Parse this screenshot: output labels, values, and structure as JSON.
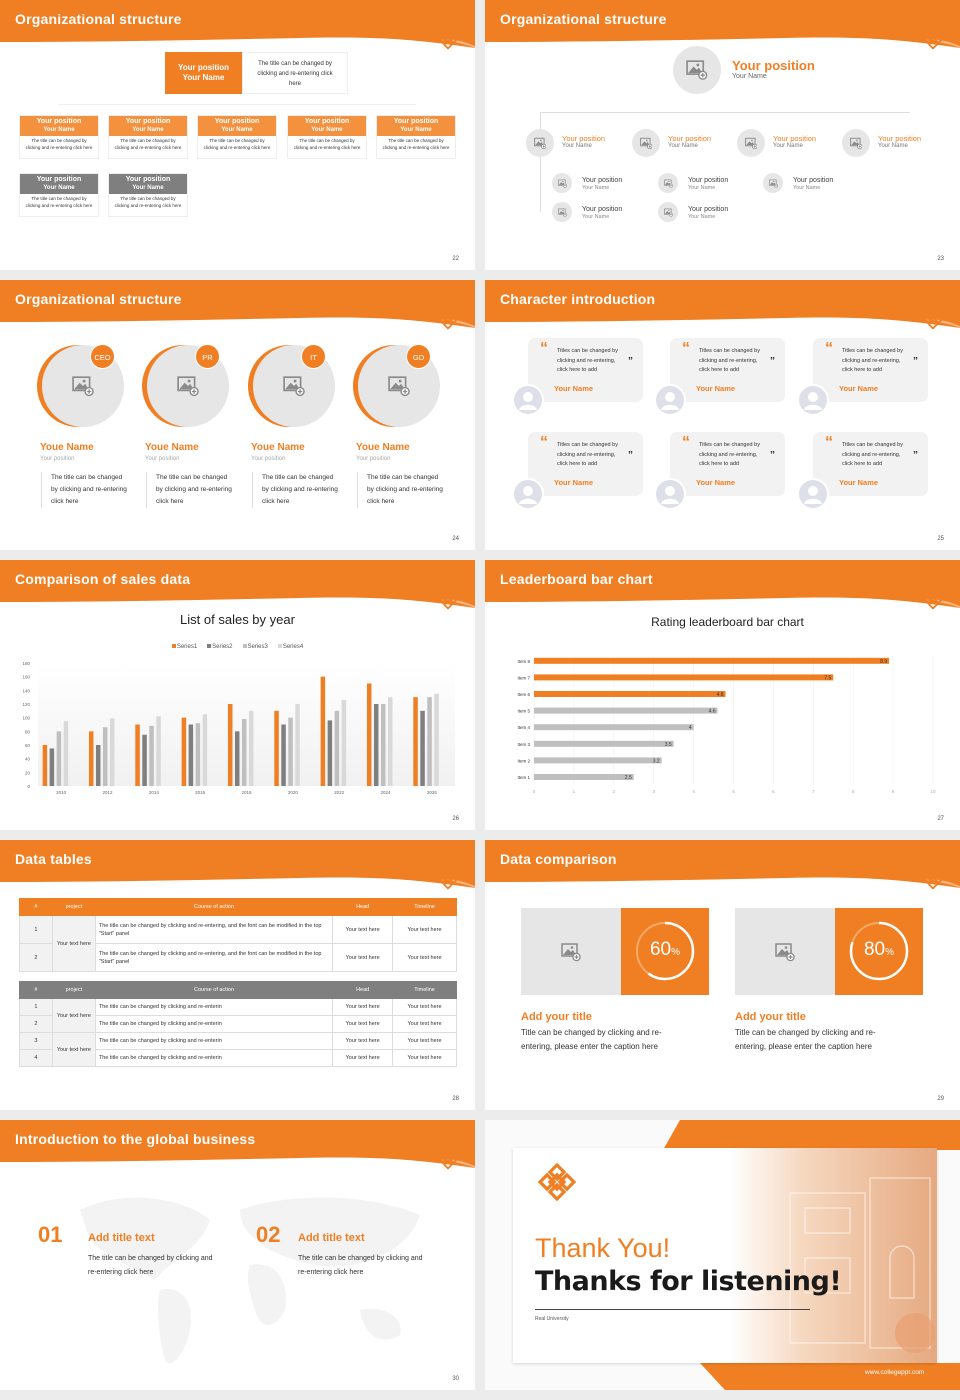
{
  "colors": {
    "accent": "#f07f23",
    "accent_light": "#f4913e",
    "gray_dark": "#7f7f7f",
    "gray_light": "#e6e6e6"
  },
  "s22": {
    "title": "Organizational structure",
    "page": "22",
    "top": {
      "position": "Your position",
      "name": "Your Name",
      "desc": "The title can be changed by clicking and re-entering click here"
    },
    "row1": [
      {
        "position": "Your position",
        "name": "Your Name",
        "desc": "The title can be changed by clicking and re-entering click here"
      },
      {
        "position": "Your position",
        "name": "Your Name",
        "desc": "The title can be changed by clicking and re-entering click here"
      },
      {
        "position": "Your position",
        "name": "Your Name",
        "desc": "The title can be changed by clicking and re-entering click here"
      },
      {
        "position": "Your position",
        "name": "Your Name",
        "desc": "The title can be changed by clicking and re-entering click here"
      },
      {
        "position": "Your position",
        "name": "Your Name",
        "desc": "The title can be changed by clicking and re-entering click here"
      }
    ],
    "row2": [
      {
        "position": "Your position",
        "name": "Your Name",
        "desc": "The title can be changed by clicking and re-entering click here"
      },
      {
        "position": "Your position",
        "name": "Your Name",
        "desc": "The title can be changed by clicking and re-entering click here"
      }
    ]
  },
  "s23": {
    "title": "Organizational structure",
    "page": "23",
    "top": {
      "position": "Your position",
      "name": "Your Name"
    },
    "row": [
      {
        "position": "Your position",
        "name": "Your Name"
      },
      {
        "position": "Your position",
        "name": "Your Name"
      },
      {
        "position": "Your position",
        "name": "Your Name"
      },
      {
        "position": "Your position",
        "name": "Your Name"
      }
    ],
    "subs": [
      {
        "position": "Your position",
        "name": "Your Name"
      },
      {
        "position": "Your position",
        "name": "Your Name"
      },
      {
        "position": "Your position",
        "name": "Your Name"
      },
      {
        "position": "Your position",
        "name": "Your Name"
      },
      {
        "position": "Your position",
        "name": "Your Name"
      }
    ]
  },
  "s24": {
    "title": "Organizational structure",
    "page": "24",
    "people": [
      {
        "badge": "CEO",
        "name": "Youe Name",
        "position": "Your position",
        "desc": "The title can be changed by clicking and re-entering click here"
      },
      {
        "badge": "PR",
        "name": "Youe Name",
        "position": "Your position",
        "desc": "The title can be changed by clicking and re-entering click here"
      },
      {
        "badge": "IT",
        "name": "Youe Name",
        "position": "Your position",
        "desc": "The title can be changed by clicking and re-entering click here"
      },
      {
        "badge": "GD",
        "name": "Youe Name",
        "position": "Your position",
        "desc": "The title can be changed by clicking and re-entering click here"
      }
    ]
  },
  "s25": {
    "title": "Character introduction",
    "page": "25",
    "open_quote": "“",
    "close_quote": "”",
    "cards": [
      {
        "quote": "Titles can be changed by clicking and re-entering, click here to add",
        "name": "Your Name"
      },
      {
        "quote": "Titles can be changed by clicking and re-entering, click here to add",
        "name": "Your Name"
      },
      {
        "quote": "Titles can be changed by clicking and re-entering, click here to add",
        "name": "Your Name"
      },
      {
        "quote": "Titles can be changed by clicking and re-entering, click here to add",
        "name": "Your Name"
      },
      {
        "quote": "Titles can be changed by clicking and re-entering, click here to add",
        "name": "Your Name"
      },
      {
        "quote": "Titles can be changed by clicking and re-entering, click here to add",
        "name": "Your Name"
      }
    ]
  },
  "s26": {
    "title": "Comparison of sales data",
    "page": "26"
  },
  "s27": {
    "title": "Leaderboard bar chart",
    "page": "27"
  },
  "s28": {
    "title": "Data tables",
    "page": "28",
    "headers": [
      "#",
      "project",
      "Course of action",
      "Head",
      "Timeline"
    ],
    "t1": {
      "project": "Your text here",
      "rows": [
        {
          "n": "1",
          "action": "The title can be changed by clicking and re-entering, and the font can be modified in the top \"Start\" panel",
          "head": "Your text here",
          "timeline": "Your text here"
        },
        {
          "n": "2",
          "action": "The title can be changed by clicking and re-entering, and the font can be modified in the top \"Start\" panel",
          "head": "Your text here",
          "timeline": "Your text here"
        }
      ]
    },
    "t2": {
      "projects": [
        "Your text here",
        "Your text here"
      ],
      "rows": [
        {
          "n": "1",
          "action": "The title can be changed by clicking and re-enterin",
          "head": "Your text here",
          "timeline": "Your text here"
        },
        {
          "n": "2",
          "action": "The title can be changed by clicking and re-enterin",
          "head": "Your text here",
          "timeline": "Your text here"
        },
        {
          "n": "3",
          "action": "The title can be changed by clicking and re-enterin",
          "head": "Your text here",
          "timeline": "Your text here"
        },
        {
          "n": "4",
          "action": "The title can be changed by clicking and re-enterin",
          "head": "Your text here",
          "timeline": "Your text here"
        }
      ]
    }
  },
  "s29": {
    "title": "Data comparison",
    "page": "29",
    "cards": [
      {
        "percent": 60,
        "value": "60",
        "unit": "%",
        "title": "Add your title",
        "desc": "Title can be changed by clicking and re-entering, please enter the caption here"
      },
      {
        "percent": 80,
        "value": "80",
        "unit": "%",
        "title": "Add your title",
        "desc": "Title can be changed by clicking and re-entering, please enter the caption here"
      }
    ]
  },
  "s30": {
    "title": "Introduction to the global business",
    "page": "30",
    "items": [
      {
        "num": "01",
        "title": "Add title text",
        "desc": "The title can be changed by clicking and re-entering click here"
      },
      {
        "num": "02",
        "title": "Add title text",
        "desc": "The title can be changed by clicking and re-entering click here"
      }
    ]
  },
  "s31": {
    "thank": "Thank You!",
    "thanks": "Thanks for listening!",
    "org": "Real University",
    "url": "www.collegeppt.com"
  },
  "chart_data": [
    {
      "type": "bar",
      "title": "List of sales by year",
      "categories": [
        "2010",
        "2012",
        "2014",
        "2016",
        "2018",
        "2020",
        "2022",
        "2024",
        "2026"
      ],
      "series": [
        {
          "name": "Series1",
          "color": "#f07f23",
          "values": [
            60,
            80,
            90,
            100,
            120,
            110,
            160,
            150,
            130
          ]
        },
        {
          "name": "Series2",
          "color": "#7f7f7f",
          "values": [
            55,
            60,
            75,
            90,
            80,
            90,
            96,
            120,
            110
          ]
        },
        {
          "name": "Series3",
          "color": "#bfbfbf",
          "values": [
            80,
            86,
            88,
            92,
            98,
            100,
            110,
            120,
            130
          ]
        },
        {
          "name": "Series4",
          "color": "#d9d9d9",
          "values": [
            95,
            99,
            102,
            105,
            110,
            120,
            126,
            130,
            135
          ]
        }
      ],
      "ylim": [
        0,
        180
      ],
      "yticks": [
        "0",
        "20",
        "40",
        "60",
        "80",
        "100",
        "120",
        "140",
        "160",
        "180"
      ],
      "legend": "top",
      "grid": false
    },
    {
      "type": "bar",
      "orientation": "horizontal",
      "title": "Rating leaderboard bar chart",
      "categories": [
        "Item 1",
        "Item 2",
        "Item 3",
        "Item 4",
        "Item 5",
        "Item 6",
        "Item 7",
        "Item 8"
      ],
      "values": [
        2.5,
        3.2,
        3.5,
        4,
        4.6,
        4.8,
        7.5,
        8.9
      ],
      "labels": [
        "2.5",
        "3.2",
        "3.5",
        "4",
        "4.6",
        "4.8",
        "7.5",
        "8.9"
      ],
      "highlight_color": "#f07f23",
      "base_color": "#bfbfbf",
      "xlim": [
        0,
        10
      ],
      "xticks": [
        "0",
        "1",
        "2",
        "3",
        "4",
        "5",
        "6",
        "7",
        "8",
        "9",
        "10"
      ],
      "grid": true
    }
  ]
}
